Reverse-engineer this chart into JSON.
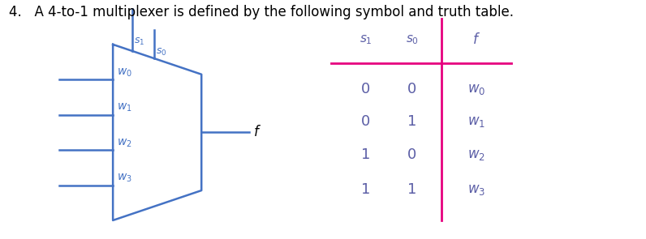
{
  "title": "4.   A 4-to-1 multiplexer is defined by the following symbol and truth table.",
  "title_fontsize": 12,
  "mux_color": "#4472C4",
  "table_line_color": "#E6007E",
  "label_color": "#4472C4",
  "table_text_color": "#5B5EA6",
  "bg_color": "#FFFFFF",
  "inputs": [
    "w_0",
    "w_1",
    "w_2",
    "w_3"
  ],
  "table_s1": [
    "0",
    "0",
    "1",
    "1"
  ],
  "table_s0": [
    "0",
    "1",
    "0",
    "1"
  ],
  "table_f": [
    "w_0",
    "w_1",
    "w_2",
    "w_3"
  ]
}
